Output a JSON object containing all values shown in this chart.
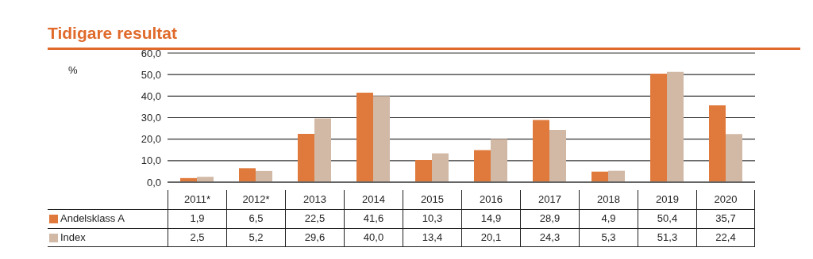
{
  "chart_data": {
    "type": "bar",
    "title": "Tidigare resultat",
    "annotations": [
      "%"
    ],
    "categories": [
      "2011*",
      "2012*",
      "2013",
      "2014",
      "2015",
      "2016",
      "2017",
      "2018",
      "2019",
      "2020"
    ],
    "series": [
      {
        "name": "Andelsklass A",
        "color": "#e07a3c",
        "values": [
          1.9,
          6.5,
          22.5,
          41.6,
          10.3,
          14.9,
          28.9,
          4.9,
          50.4,
          35.7
        ],
        "value_labels": [
          "1,9",
          "6,5",
          "22,5",
          "41,6",
          "10,3",
          "14,9",
          "28,9",
          "4,9",
          "50,4",
          "35,7"
        ]
      },
      {
        "name": "Index",
        "color": "#d2b9a6",
        "values": [
          2.5,
          5.2,
          29.6,
          40.0,
          13.4,
          20.1,
          24.3,
          5.3,
          51.3,
          22.4
        ],
        "value_labels": [
          "2,5",
          "5,2",
          "29,6",
          "40,0",
          "13,4",
          "20,1",
          "24,3",
          "5,3",
          "51,3",
          "22,4"
        ]
      }
    ],
    "ylim": [
      0,
      60
    ],
    "yticks": [
      {
        "value": 0,
        "label": "0,0"
      },
      {
        "value": 10,
        "label": "10,0"
      },
      {
        "value": 20,
        "label": "20,0"
      },
      {
        "value": 30,
        "label": "30,0"
      },
      {
        "value": 40,
        "label": "40,0"
      },
      {
        "value": 50,
        "label": "50,0"
      },
      {
        "value": 60,
        "label": "60,0"
      }
    ],
    "grid": "y",
    "legend": "bottom left"
  }
}
